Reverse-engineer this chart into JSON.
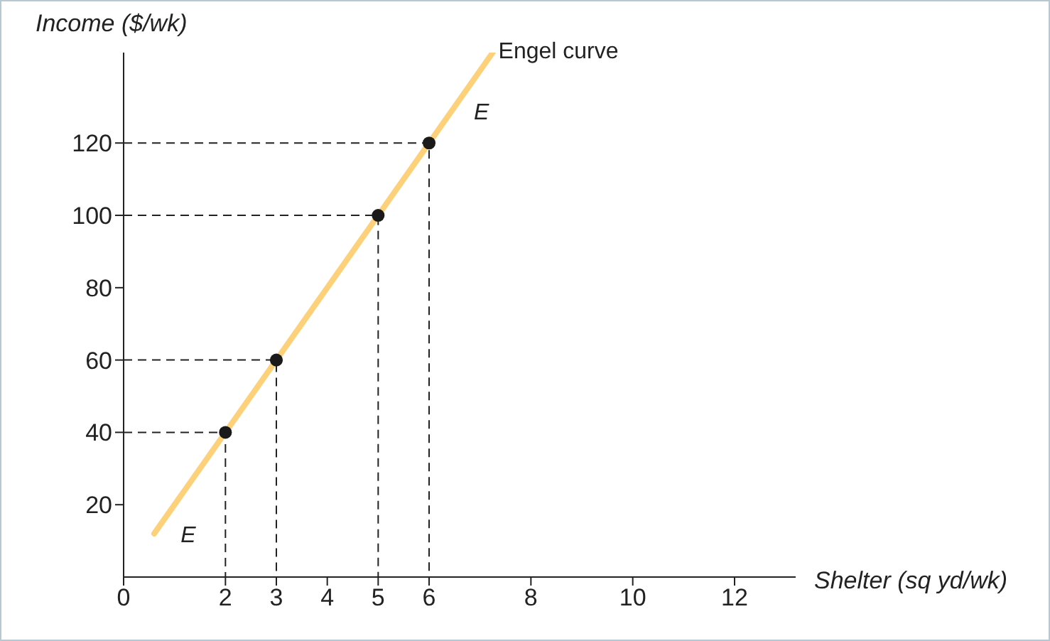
{
  "chart_data": {
    "type": "line",
    "xlabel": "Shelter (sq yd/wk)",
    "ylabel": "Income ($/wk)",
    "xlim": [
      0,
      13.2
    ],
    "ylim": [
      0,
      145
    ],
    "xticks": [
      0,
      2,
      3,
      4,
      5,
      6,
      8,
      10,
      12
    ],
    "yticks": [
      20,
      40,
      60,
      80,
      100,
      120
    ],
    "grid": false,
    "line_style": "solid",
    "annotations": [
      "E",
      "E"
    ],
    "series": [
      {
        "name": "Engel curve",
        "marker": "none",
        "color": "#fdd17a",
        "x": [
          0.6,
          7.25
        ],
        "values": [
          12,
          145
        ]
      },
      {
        "type": "scatter",
        "marker": "circle",
        "color": "#1a1a1a",
        "x": [
          2,
          3,
          5,
          6
        ],
        "values": [
          40,
          60,
          100,
          120
        ]
      },
      {
        "line_style": "dashed",
        "marker": "none",
        "color": "#222222",
        "x": [
          0,
          2,
          2
        ],
        "values": [
          40,
          40,
          0
        ]
      },
      {
        "line_style": "dashed",
        "marker": "none",
        "color": "#222222",
        "x": [
          0,
          3,
          3
        ],
        "values": [
          60,
          60,
          0
        ]
      },
      {
        "line_style": "dashed",
        "marker": "none",
        "color": "#222222",
        "x": [
          0,
          5,
          5
        ],
        "values": [
          100,
          100,
          0
        ]
      },
      {
        "line_style": "dashed",
        "marker": "none",
        "color": "#222222",
        "x": [
          0,
          6,
          6
        ],
        "values": [
          120,
          120,
          0
        ]
      }
    ]
  }
}
